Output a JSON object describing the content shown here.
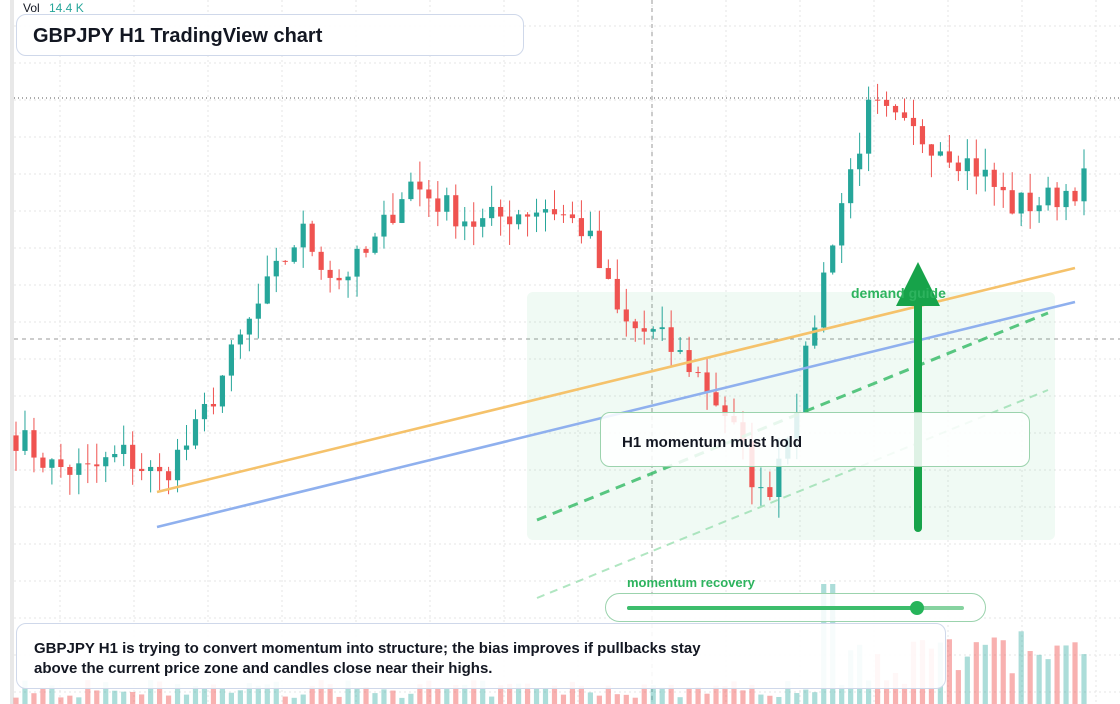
{
  "window": {
    "title": "GBPJPY H1 TradingView chart"
  },
  "volume": {
    "label": "Vol",
    "value": "14.4 K"
  },
  "annotations": {
    "note": "H1 momentum must hold",
    "demand_label": "demand guide",
    "momentum_label": "momentum recovery",
    "momentum_level": 0.86
  },
  "description": "GBPJPY H1 is trying to convert momentum into structure; the bias improves if pullbacks stay above the current price zone and candles close near their highs.",
  "colors": {
    "up": "#26a69a",
    "down": "#ef5350",
    "accent_green": "#2db35e",
    "trend_orange": "#f5c26b",
    "trend_blue": "#8fb0ee",
    "text": "#131722"
  },
  "chart_data": {
    "type": "candlestick",
    "symbol": "GBPJPY",
    "timeframe": "H1",
    "candle_count": 120,
    "seed": 7,
    "opens_start_level": 0.33,
    "path": [
      0.33,
      0.28,
      0.27,
      0.3,
      0.26,
      0.33,
      0.45,
      0.56,
      0.66,
      0.58,
      0.63,
      0.74,
      0.7,
      0.67,
      0.69,
      0.7,
      0.66,
      0.51,
      0.49,
      0.44,
      0.36,
      0.22,
      0.4,
      0.67,
      0.86,
      0.82,
      0.8,
      0.76,
      0.7,
      0.71,
      0.74
    ],
    "volume_pattern": "low early, rising toward the right with spikes near recovery"
  }
}
